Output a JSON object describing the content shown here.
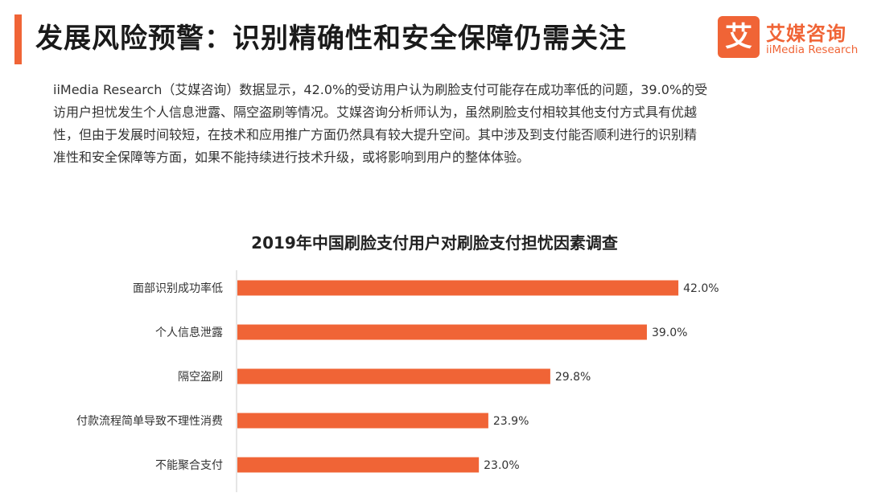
{
  "header": {
    "title": "发展风险预警：识别精确性和安全保障仍需关注"
  },
  "logo": {
    "mark": "艾",
    "name_cn": "艾媒咨询",
    "name_en": "iiMedia Research"
  },
  "body_text": {
    "lines": [
      "iiMedia Research（艾媒咨询）数据显示，42.0%的受访用户认为刷脸支付可能存在成功率低的问题，39.0%的受",
      "访用户担忧发生个人信息泄露、隔空盗刷等情况。艾媒咨询分析师认为，虽然刷脸支付相较其他支付方式具有优越",
      "性，但由于发展时间较短，在技术和应用推广方面仍然具有较大提升空间。其中涉及到支付能否顺利进行的识别精",
      "准性和安全保障等方面，如果不能持续进行技术升级，或将影响到用户的整体体验。"
    ]
  },
  "colors": {
    "accent": "#f06436",
    "bar": "#f06436",
    "axis": "#cccccc"
  },
  "chart_data": {
    "type": "bar",
    "orientation": "horizontal",
    "title": "2019年中国刷脸支付用户对刷脸支付担忧因素调查",
    "categories": [
      "面部识别成功率低",
      "个人信息泄露",
      "隔空盗刷",
      "付款流程简单导致不理性消费",
      "不能聚合支付"
    ],
    "values": [
      42.0,
      39.0,
      29.8,
      23.9,
      23.0
    ],
    "value_labels": [
      "42.0%",
      "39.0%",
      "29.8%",
      "23.9%",
      "23.0%"
    ],
    "xlim": [
      0,
      50
    ],
    "grid": false,
    "legend": "none",
    "xlabel": "",
    "ylabel": ""
  }
}
